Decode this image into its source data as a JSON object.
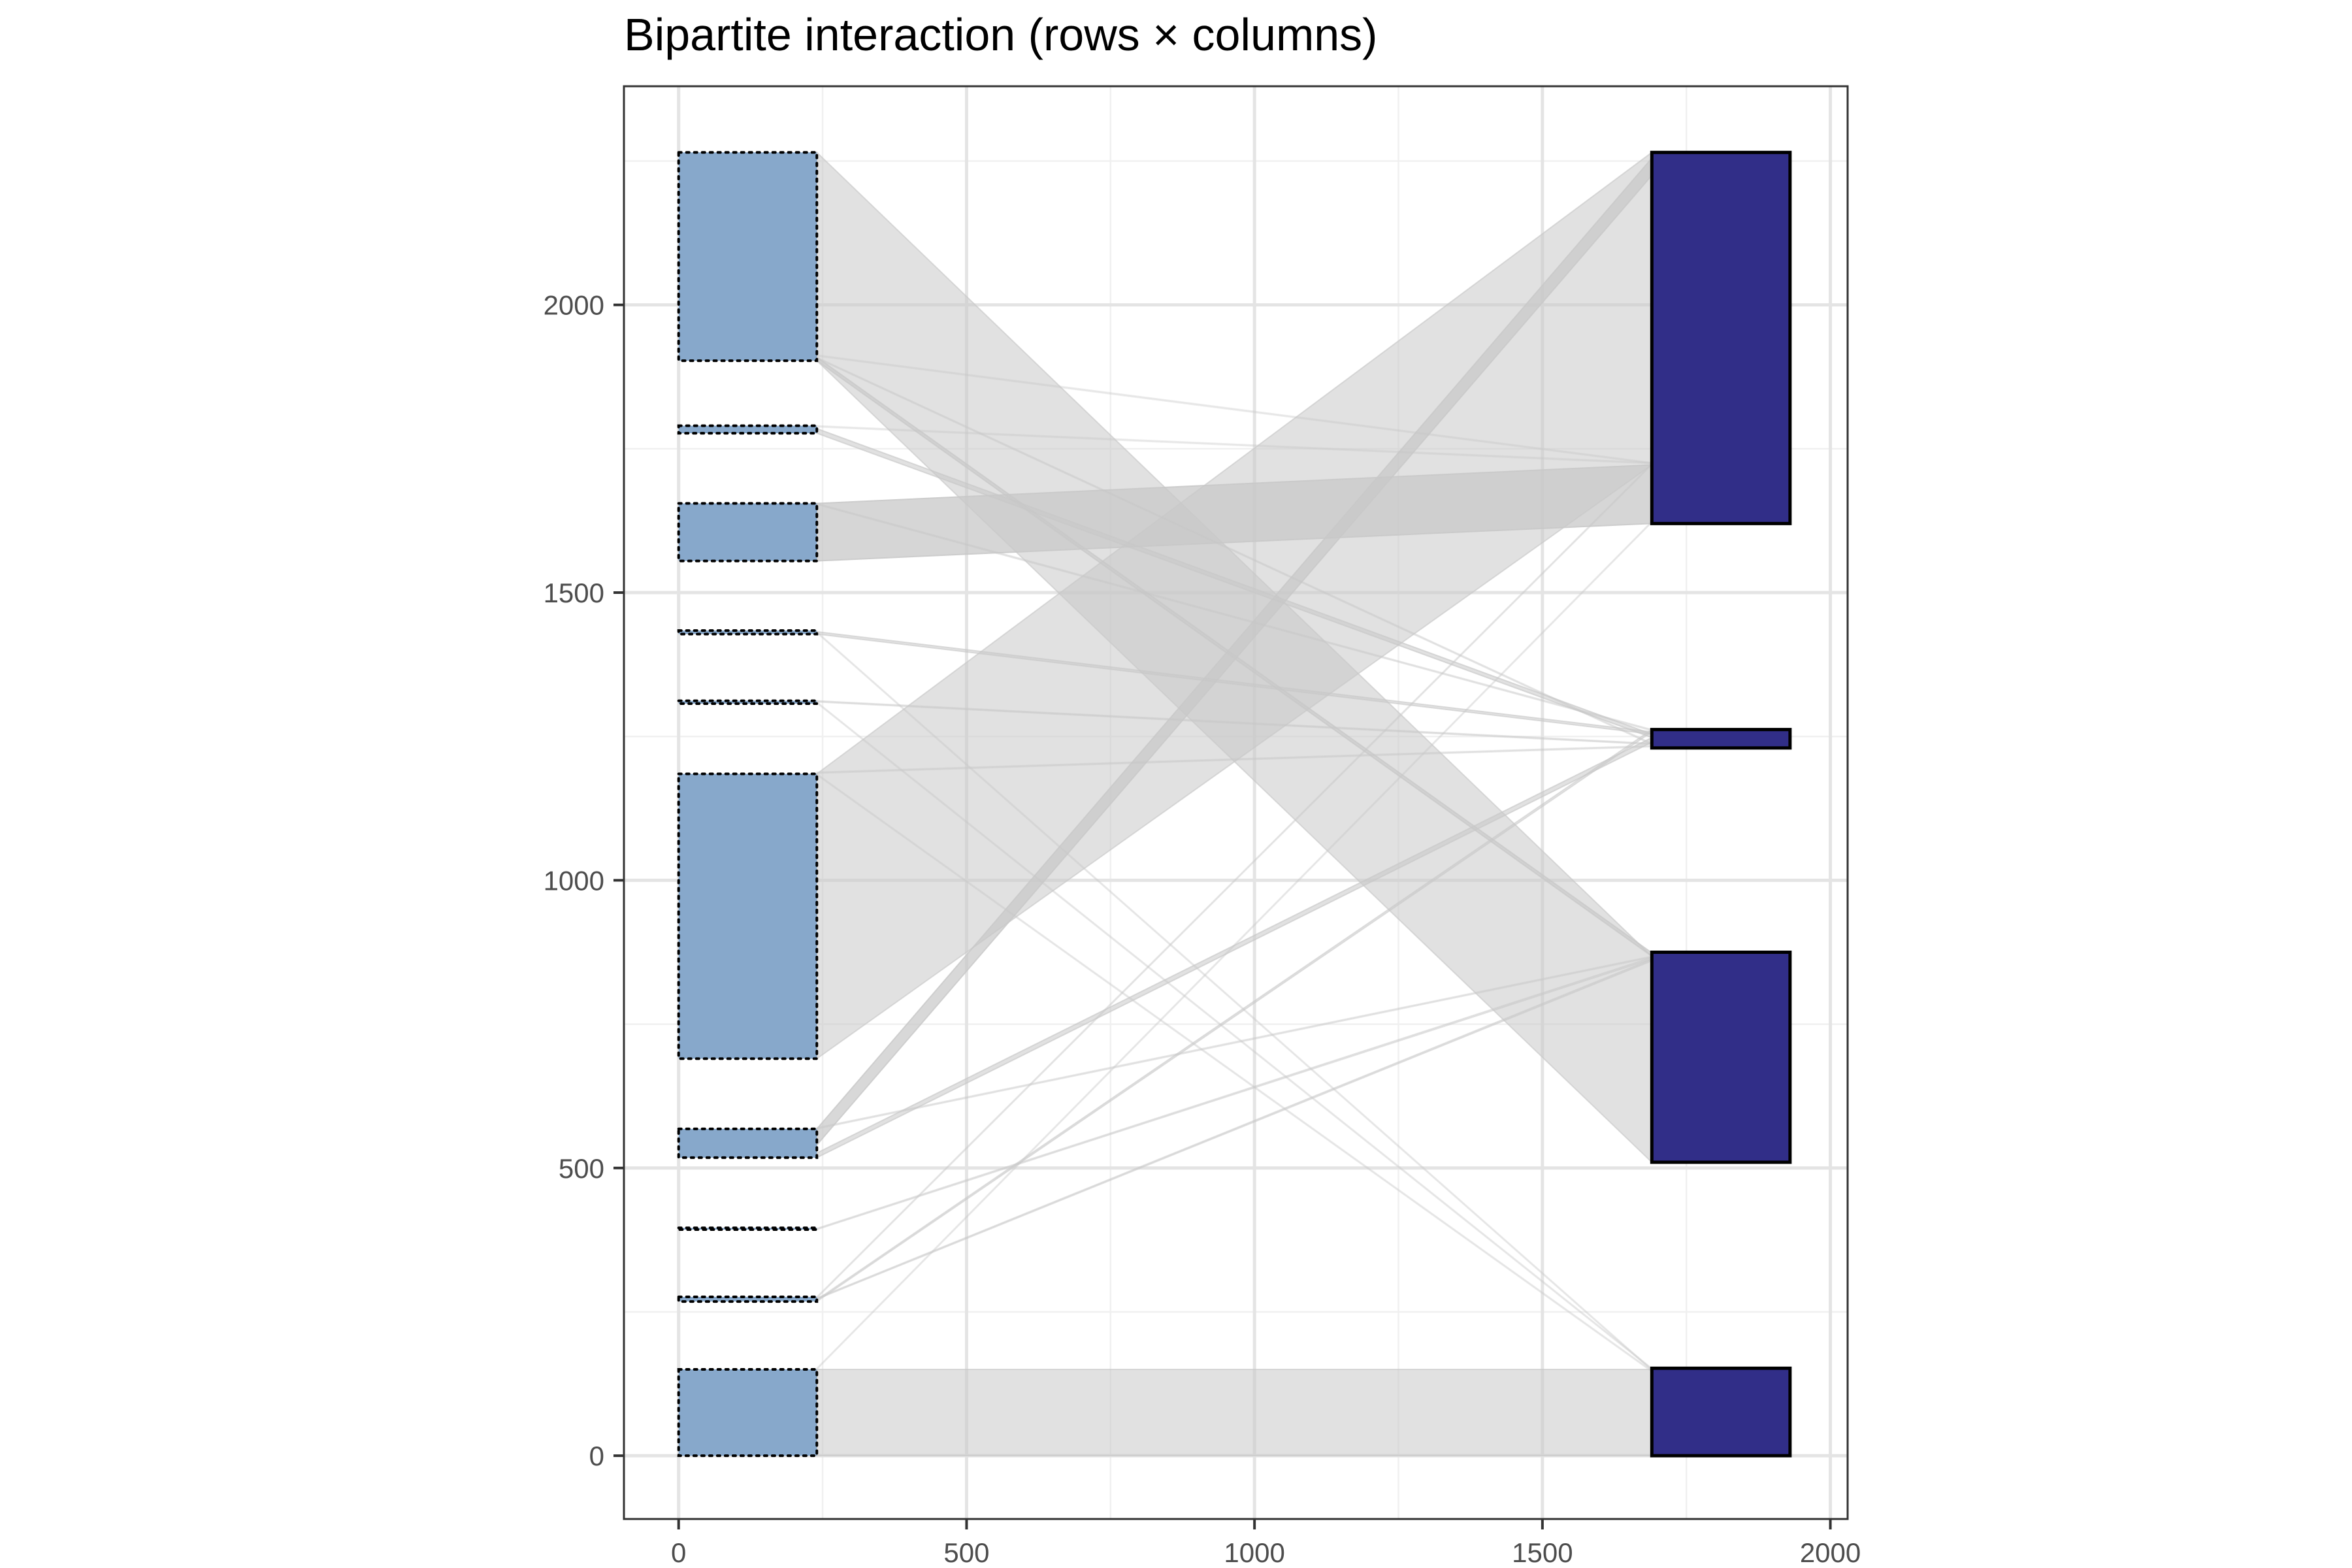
{
  "chart_data": {
    "type": "bipartite",
    "title": "Bipartite interaction (rows × columns)",
    "xlabel": "",
    "ylabel": "",
    "xlim": [
      -95,
      2030
    ],
    "ylim": [
      -110,
      2380
    ],
    "x_ticks": [
      0,
      500,
      1000,
      1500,
      2000
    ],
    "y_ticks": [
      0,
      500,
      1000,
      1500,
      2000
    ],
    "grid": true,
    "colors": {
      "row_fill": "#87a8cb",
      "col_fill": "#312e88",
      "link": "#c8c8c8",
      "grid_major": "#e4e4e4",
      "grid_minor": "#f0f0f0"
    },
    "row_blocks_x": [
      0,
      240
    ],
    "col_blocks_x": [
      1690,
      1930
    ],
    "row_blocks": [
      {
        "y0": 0,
        "y1": 150
      },
      {
        "y0": 268,
        "y1": 276
      },
      {
        "y0": 393,
        "y1": 396
      },
      {
        "y0": 518,
        "y1": 568
      },
      {
        "y0": 690,
        "y1": 1185
      },
      {
        "y0": 1307,
        "y1": 1312
      },
      {
        "y0": 1428,
        "y1": 1434
      },
      {
        "y0": 1555,
        "y1": 1655
      },
      {
        "y0": 1777,
        "y1": 1790
      },
      {
        "y0": 1903,
        "y1": 2265
      }
    ],
    "col_blocks": [
      {
        "y0": 0,
        "y1": 152
      },
      {
        "y0": 510,
        "y1": 875
      },
      {
        "y0": 1230,
        "y1": 1262
      },
      {
        "y0": 1620,
        "y1": 2265
      }
    ],
    "links": [
      {
        "r0": 0,
        "r1": 150,
        "c0": 0,
        "c1": 150,
        "opacity": 0.55
      },
      {
        "r0": 1903,
        "r1": 2265,
        "c0": 510,
        "c1": 868,
        "opacity": 0.55
      },
      {
        "r0": 690,
        "r1": 1185,
        "c0": 1722,
        "c1": 2265,
        "opacity": 0.55
      },
      {
        "r0": 1555,
        "r1": 1655,
        "c0": 1620,
        "c1": 1722,
        "opacity": 0.75
      },
      {
        "r0": 540,
        "r1": 568,
        "c0": 2225,
        "c1": 2255,
        "opacity": 0.7
      },
      {
        "r0": 518,
        "r1": 526,
        "c0": 1240,
        "c1": 1248,
        "opacity": 0.55
      },
      {
        "r0": 1903,
        "r1": 1909,
        "c0": 868,
        "c1": 874,
        "opacity": 0.65
      },
      {
        "r0": 1777,
        "r1": 1785,
        "c0": 1248,
        "c1": 1254,
        "opacity": 0.55
      },
      {
        "r0": 1428,
        "r1": 1432,
        "c0": 1254,
        "c1": 1258,
        "opacity": 0.5
      },
      {
        "r0": 268,
        "r1": 271,
        "c0": 1258,
        "c1": 1262,
        "opacity": 0.45
      },
      {
        "r0": 272,
        "r1": 274,
        "c0": 860,
        "c1": 863,
        "opacity": 0.4
      },
      {
        "r0": 393,
        "r1": 395,
        "c0": 863,
        "c1": 866,
        "opacity": 0.35
      },
      {
        "r0": 1310,
        "r1": 1312,
        "c0": 1236,
        "c1": 1238,
        "opacity": 0.35
      },
      {
        "r0": 1907,
        "r1": 1909,
        "c0": 1236,
        "c1": 1238,
        "opacity": 0.3
      },
      {
        "r0": 1186,
        "r1": 1188,
        "c0": 1232,
        "c1": 1234,
        "opacity": 0.3
      },
      {
        "r0": 568,
        "r1": 570,
        "c0": 866,
        "c1": 868,
        "opacity": 0.3
      },
      {
        "r0": 1308,
        "r1": 1310,
        "c0": 150,
        "c1": 152,
        "opacity": 0.25
      },
      {
        "r0": 1430,
        "r1": 1432,
        "c0": 148,
        "c1": 150,
        "opacity": 0.25
      },
      {
        "r0": 1183,
        "r1": 1185,
        "c0": 146,
        "c1": 148,
        "opacity": 0.25
      },
      {
        "r0": 274,
        "r1": 276,
        "c0": 1722,
        "c1": 1724,
        "opacity": 0.3
      },
      {
        "r0": 150,
        "r1": 152,
        "c0": 1622,
        "c1": 1624,
        "opacity": 0.25
      },
      {
        "r0": 1653,
        "r1": 1655,
        "c0": 1260,
        "c1": 1262,
        "opacity": 0.3
      },
      {
        "r0": 1788,
        "r1": 1790,
        "c0": 1724,
        "c1": 1726,
        "opacity": 0.2
      },
      {
        "r0": 1911,
        "r1": 1913,
        "c0": 1724,
        "c1": 1726,
        "opacity": 0.2
      }
    ]
  }
}
